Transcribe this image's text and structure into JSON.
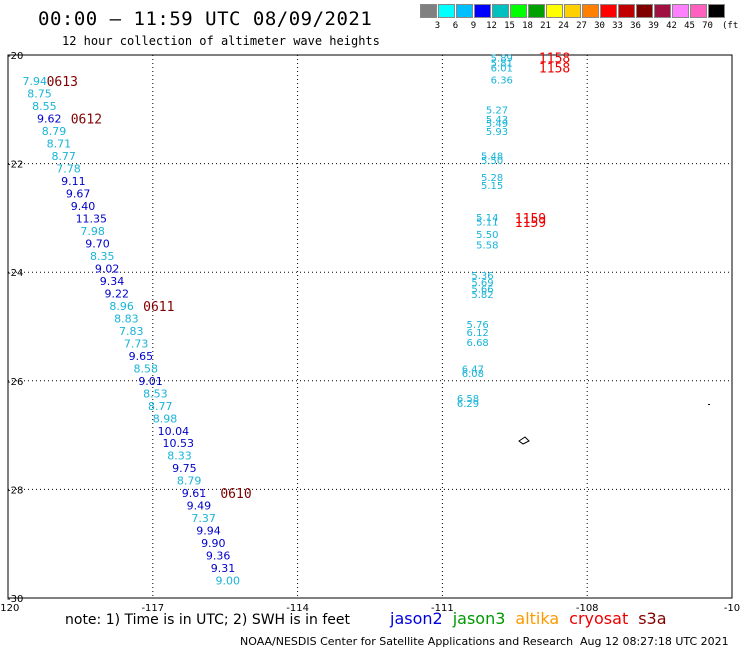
{
  "title": "00:00 — 11:59 UTC 08/09/2021",
  "subtitle": "12 hour collection of altimeter wave heights",
  "legend": {
    "colors": [
      "#808080",
      "#00ffff",
      "#00bfff",
      "#0000ff",
      "#00c0c0",
      "#00ff00",
      "#00a000",
      "#ffff00",
      "#ffd000",
      "#ff8000",
      "#ff0000",
      "#c00000",
      "#800000",
      "#a01040",
      "#ff80ff",
      "#ff60c0",
      "#000000"
    ],
    "labels": [
      "3",
      "6",
      "9",
      "12",
      "15",
      "18",
      "21",
      "24",
      "27",
      "30",
      "33",
      "36",
      "39",
      "42",
      "45",
      "70"
    ],
    "unit": "(ft)"
  },
  "axes": {
    "lon_ticks": [
      "-120",
      "-117",
      "-114",
      "-111",
      "-108",
      "-10"
    ],
    "lat_ticks": [
      "-20",
      "-22",
      "-24",
      "-26",
      "-28",
      "-30"
    ]
  },
  "colors": {
    "cyan": "#18b4d8",
    "blue": "#0000cc",
    "darkred": "#800000",
    "red": "#ee0000",
    "jason2": "#0000dd",
    "jason3": "#009900",
    "altika": "#ff9900",
    "cryosat": "#ee0000",
    "s3a": "#800000"
  },
  "western_track": [
    {
      "lon": -119.7,
      "lat": -20.48,
      "v": "7.94",
      "c": "cyan"
    },
    {
      "lon": -119.6,
      "lat": -20.71,
      "v": "8.75",
      "c": "cyan"
    },
    {
      "lon": -119.5,
      "lat": -20.94,
      "v": "8.55",
      "c": "cyan"
    },
    {
      "lon": -119.4,
      "lat": -21.17,
      "v": "9.62",
      "c": "blue"
    },
    {
      "lon": -119.3,
      "lat": -21.4,
      "v": "8.79",
      "c": "cyan"
    },
    {
      "lon": -119.2,
      "lat": -21.63,
      "v": "8.71",
      "c": "cyan"
    },
    {
      "lon": -119.1,
      "lat": -21.86,
      "v": "8.77",
      "c": "cyan"
    },
    {
      "lon": -119.0,
      "lat": -22.09,
      "v": "7.78",
      "c": "cyan"
    },
    {
      "lon": -118.9,
      "lat": -22.32,
      "v": "9.11",
      "c": "blue"
    },
    {
      "lon": -118.8,
      "lat": -22.55,
      "v": "9.67",
      "c": "blue"
    },
    {
      "lon": -118.7,
      "lat": -22.78,
      "v": "9.40",
      "c": "blue"
    },
    {
      "lon": -118.6,
      "lat": -23.01,
      "v": "11.35",
      "c": "blue"
    },
    {
      "lon": -118.5,
      "lat": -23.24,
      "v": "7.98",
      "c": "cyan"
    },
    {
      "lon": -118.4,
      "lat": -23.47,
      "v": "9.70",
      "c": "blue"
    },
    {
      "lon": -118.3,
      "lat": -23.7,
      "v": "8.35",
      "c": "cyan"
    },
    {
      "lon": -118.2,
      "lat": -23.93,
      "v": "9.02",
      "c": "blue"
    },
    {
      "lon": -118.1,
      "lat": -24.16,
      "v": "9.34",
      "c": "blue"
    },
    {
      "lon": -118.0,
      "lat": -24.39,
      "v": "9.22",
      "c": "blue"
    },
    {
      "lon": -117.9,
      "lat": -24.62,
      "v": "8.96",
      "c": "cyan"
    },
    {
      "lon": -117.8,
      "lat": -24.85,
      "v": "8.83",
      "c": "cyan"
    },
    {
      "lon": -117.7,
      "lat": -25.08,
      "v": "7.83",
      "c": "cyan"
    },
    {
      "lon": -117.6,
      "lat": -25.31,
      "v": "7.73",
      "c": "cyan"
    },
    {
      "lon": -117.5,
      "lat": -25.54,
      "v": "9.65",
      "c": "blue"
    },
    {
      "lon": -117.4,
      "lat": -25.77,
      "v": "8.58",
      "c": "cyan"
    },
    {
      "lon": -117.3,
      "lat": -26.0,
      "v": "9.01",
      "c": "blue"
    },
    {
      "lon": -117.2,
      "lat": -26.23,
      "v": "8.53",
      "c": "cyan"
    },
    {
      "lon": -117.1,
      "lat": -26.46,
      "v": "8.77",
      "c": "cyan"
    },
    {
      "lon": -117.0,
      "lat": -26.69,
      "v": "8.98",
      "c": "cyan"
    },
    {
      "lon": -116.9,
      "lat": -26.92,
      "v": "10.04",
      "c": "blue"
    },
    {
      "lon": -116.8,
      "lat": -27.15,
      "v": "10.53",
      "c": "blue"
    },
    {
      "lon": -116.7,
      "lat": -27.38,
      "v": "8.33",
      "c": "cyan"
    },
    {
      "lon": -116.6,
      "lat": -27.61,
      "v": "9.75",
      "c": "blue"
    },
    {
      "lon": -116.5,
      "lat": -27.84,
      "v": "8.79",
      "c": "cyan"
    },
    {
      "lon": -116.4,
      "lat": -28.07,
      "v": "9.61",
      "c": "blue"
    },
    {
      "lon": -116.3,
      "lat": -28.3,
      "v": "9.49",
      "c": "blue"
    },
    {
      "lon": -116.2,
      "lat": -28.53,
      "v": "7.37",
      "c": "cyan"
    },
    {
      "lon": -116.1,
      "lat": -28.76,
      "v": "9.94",
      "c": "blue"
    },
    {
      "lon": -116.0,
      "lat": -28.99,
      "v": "9.90",
      "c": "blue"
    },
    {
      "lon": -115.9,
      "lat": -29.22,
      "v": "9.36",
      "c": "blue"
    },
    {
      "lon": -115.8,
      "lat": -29.45,
      "v": "9.31",
      "c": "blue"
    },
    {
      "lon": -115.7,
      "lat": -29.68,
      "v": "9.00",
      "c": "cyan"
    }
  ],
  "eastern_track": [
    {
      "lon": -110.0,
      "lat": -20.05,
      "v": "5.89"
    },
    {
      "lon": -110.0,
      "lat": -20.14,
      "v": "5.81"
    },
    {
      "lon": -110.0,
      "lat": -20.23,
      "v": "6.01"
    },
    {
      "lon": -110.0,
      "lat": -20.45,
      "v": "6.36"
    },
    {
      "lon": -110.1,
      "lat": -21.0,
      "v": "5.27"
    },
    {
      "lon": -110.1,
      "lat": -21.18,
      "v": "5.43"
    },
    {
      "lon": -110.1,
      "lat": -21.25,
      "v": "5.49"
    },
    {
      "lon": -110.1,
      "lat": -21.4,
      "v": "5.93"
    },
    {
      "lon": -110.2,
      "lat": -21.85,
      "v": "5.48"
    },
    {
      "lon": -110.2,
      "lat": -21.93,
      "v": "5.50"
    },
    {
      "lon": -110.2,
      "lat": -22.25,
      "v": "5.28"
    },
    {
      "lon": -110.2,
      "lat": -22.39,
      "v": "5.15"
    },
    {
      "lon": -110.3,
      "lat": -22.98,
      "v": "5.14"
    },
    {
      "lon": -110.3,
      "lat": -23.07,
      "v": "5.11"
    },
    {
      "lon": -110.3,
      "lat": -23.3,
      "v": "5.50"
    },
    {
      "lon": -110.3,
      "lat": -23.49,
      "v": "5.58"
    },
    {
      "lon": -110.4,
      "lat": -24.05,
      "v": "5.36"
    },
    {
      "lon": -110.4,
      "lat": -24.18,
      "v": "5.69"
    },
    {
      "lon": -110.4,
      "lat": -24.3,
      "v": "5.66"
    },
    {
      "lon": -110.4,
      "lat": -24.4,
      "v": "5.82"
    },
    {
      "lon": -110.5,
      "lat": -24.95,
      "v": "5.76"
    },
    {
      "lon": -110.5,
      "lat": -25.1,
      "v": "6.12"
    },
    {
      "lon": -110.5,
      "lat": -25.29,
      "v": "6.68"
    },
    {
      "lon": -110.6,
      "lat": -25.77,
      "v": "6.47"
    },
    {
      "lon": -110.6,
      "lat": -25.86,
      "v": "6.08"
    },
    {
      "lon": -110.7,
      "lat": -26.32,
      "v": "6.58"
    },
    {
      "lon": -110.7,
      "lat": -26.41,
      "v": "6.29"
    }
  ],
  "time_labels": [
    {
      "lon": -119.2,
      "lat": -20.48,
      "t": "0613",
      "c": "darkred"
    },
    {
      "lon": -118.7,
      "lat": -21.17,
      "t": "0612",
      "c": "darkred"
    },
    {
      "lon": -117.2,
      "lat": -24.62,
      "t": "0611",
      "c": "darkred"
    },
    {
      "lon": -115.6,
      "lat": -28.07,
      "t": "0610",
      "c": "darkred"
    },
    {
      "lon": -109.0,
      "lat": -20.05,
      "t": "1158",
      "c": "red"
    },
    {
      "lon": -109.0,
      "lat": -20.23,
      "t": "1158",
      "c": "red"
    },
    {
      "lon": -109.5,
      "lat": -23.0,
      "t": "1159",
      "c": "red"
    },
    {
      "lon": -109.5,
      "lat": -23.08,
      "t": "1159",
      "c": "red"
    }
  ],
  "note": "note: 1) Time is in UTC; 2) SWH is in feet",
  "satellites": [
    {
      "name": "jason2",
      "c": "jason2"
    },
    {
      "name": "jason3",
      "c": "jason3"
    },
    {
      "name": "altika",
      "c": "altika"
    },
    {
      "name": "cryosat",
      "c": "cryosat"
    },
    {
      "name": "s3a",
      "c": "s3a"
    }
  ],
  "credit": "NOAA/NESDIS Center for Satellite Applications and Research",
  "timestamp": "Aug 12 08:27:18 UTC 2021"
}
